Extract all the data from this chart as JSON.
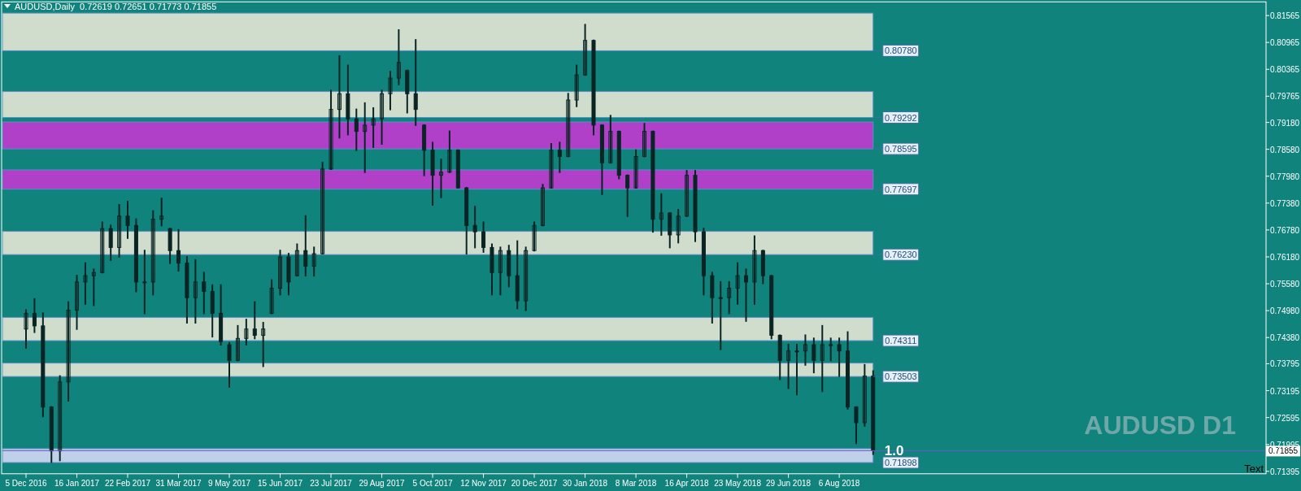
{
  "chart_data": {
    "type": "candlestick",
    "title": "AUDUSD,Daily  0.72619 0.72651 0.71773 0.71855",
    "categories": [
      "5 Dec 2016",
      null,
      null,
      null,
      null,
      null,
      "16 Jan 2017",
      null,
      null,
      null,
      null,
      null,
      "22 Feb 2017",
      null,
      null,
      null,
      null,
      null,
      "31 Mar 2017",
      null,
      null,
      null,
      null,
      null,
      "9 May 2017",
      null,
      null,
      null,
      null,
      null,
      "15 Jun 2017",
      null,
      null,
      null,
      null,
      null,
      "23 Jul 2017",
      null,
      null,
      null,
      null,
      null,
      "29 Aug 2017",
      null,
      null,
      null,
      null,
      null,
      "5 Oct 2017",
      null,
      null,
      null,
      null,
      null,
      "12 Nov 2017",
      null,
      null,
      null,
      null,
      null,
      "20 Dec 2017",
      null,
      null,
      null,
      null,
      null,
      "30 Jan 2018",
      null,
      null,
      null,
      null,
      null,
      "8 Mar 2018",
      null,
      null,
      null,
      null,
      null,
      "16 Apr 2018",
      null,
      null,
      null,
      null,
      null,
      "23 May 2018",
      null,
      null,
      null,
      null,
      null,
      "29 Jun 2018",
      null,
      null,
      null,
      null,
      null,
      "6 Aug 2018",
      null,
      null,
      null,
      null,
      null,
      null,
      null,
      null,
      null,
      null,
      null,
      null,
      null,
      null,
      null,
      null,
      null,
      null,
      null,
      null,
      null,
      null,
      null,
      null,
      null,
      null,
      null,
      null,
      null,
      null,
      null,
      null,
      null,
      null,
      null,
      null,
      null,
      null,
      null,
      null,
      null,
      null,
      null,
      null,
      null,
      null,
      null,
      null,
      null,
      null
    ],
    "series": [
      {
        "color": "#0a2424",
        "ohlc": [
          [
            0.7457,
            0.7499,
            0.7415,
            0.7492
          ],
          [
            0.7492,
            0.7524,
            0.745,
            0.7464
          ],
          [
            0.7464,
            0.7492,
            0.7262,
            0.7283
          ],
          [
            0.7283,
            0.7283,
            0.716,
            0.7185
          ],
          [
            0.7185,
            0.7352,
            0.7164,
            0.7339
          ],
          [
            0.7339,
            0.7517,
            0.7297,
            0.7499
          ],
          [
            0.7499,
            0.7576,
            0.7457,
            0.7562
          ],
          [
            0.7562,
            0.7604,
            0.7513,
            0.7576
          ],
          [
            0.7576,
            0.759,
            0.751,
            0.7583
          ],
          [
            0.7583,
            0.7695,
            0.7583,
            0.7681
          ],
          [
            0.7681,
            0.7688,
            0.7611,
            0.7639
          ],
          [
            0.7639,
            0.7734,
            0.7618,
            0.7709
          ],
          [
            0.7709,
            0.7741,
            0.766,
            0.7688
          ],
          [
            0.7688,
            0.7702,
            0.7541,
            0.7562
          ],
          [
            0.7562,
            0.7632,
            0.7492,
            0.7562
          ],
          [
            0.7562,
            0.772,
            0.7534,
            0.7702
          ],
          [
            0.7702,
            0.7748,
            0.7688,
            0.7709
          ],
          [
            0.7681,
            0.7681,
            0.7604,
            0.7632
          ],
          [
            0.7632,
            0.7678,
            0.7587,
            0.7604
          ],
          [
            0.7604,
            0.7618,
            0.7471,
            0.7527
          ],
          [
            0.7527,
            0.7611,
            0.7471,
            0.7562
          ],
          [
            0.7562,
            0.7583,
            0.7492,
            0.7541
          ],
          [
            0.7541,
            0.7555,
            0.744,
            0.7492
          ],
          [
            0.7492,
            0.7555,
            0.7422,
            0.7429
          ],
          [
            0.7422,
            0.7426,
            0.7328,
            0.7387
          ],
          [
            0.7387,
            0.7464,
            0.7387,
            0.7436
          ],
          [
            0.7436,
            0.7478,
            0.7422,
            0.7457
          ],
          [
            0.7457,
            0.7517,
            0.7436,
            0.7443
          ],
          [
            0.7443,
            0.7471,
            0.7374,
            0.7457
          ],
          [
            0.7492,
            0.7566,
            0.7492,
            0.7548
          ],
          [
            0.7548,
            0.7632,
            0.7534,
            0.7618
          ],
          [
            0.7618,
            0.7625,
            0.7534,
            0.7562
          ],
          [
            0.7576,
            0.7646,
            0.7576,
            0.7632
          ],
          [
            0.7632,
            0.7709,
            0.7576,
            0.7597
          ],
          [
            0.7597,
            0.7639,
            0.7576,
            0.7625
          ],
          [
            0.7625,
            0.7828,
            0.7625,
            0.7814
          ],
          [
            0.7814,
            0.7989,
            0.7814,
            0.7947
          ],
          [
            0.7947,
            0.8066,
            0.7884,
            0.7982
          ],
          [
            0.7982,
            0.8045,
            0.7891,
            0.7926
          ],
          [
            0.7926,
            0.7947,
            0.7856,
            0.7898
          ],
          [
            0.7898,
            0.7961,
            0.7807,
            0.7912
          ],
          [
            0.7912,
            0.795,
            0.7863,
            0.7926
          ],
          [
            0.7926,
            0.7989,
            0.787,
            0.7982
          ],
          [
            0.7982,
            0.8031,
            0.7947,
            0.8017
          ],
          [
            0.8017,
            0.8124,
            0.8003,
            0.8052
          ],
          [
            0.8034,
            0.8034,
            0.794,
            0.7982
          ],
          [
            0.7982,
            0.8102,
            0.7912,
            0.7947
          ],
          [
            0.7912,
            0.7912,
            0.78,
            0.7856
          ],
          [
            0.7856,
            0.7873,
            0.7734,
            0.78
          ],
          [
            0.78,
            0.7835,
            0.7751,
            0.7807
          ],
          [
            0.7807,
            0.7898,
            0.7807,
            0.7856
          ],
          [
            0.7856,
            0.7856,
            0.7772,
            0.7772
          ],
          [
            0.7772,
            0.7772,
            0.7625,
            0.7688
          ],
          [
            0.7688,
            0.773,
            0.7639,
            0.7674
          ],
          [
            0.7674,
            0.7695,
            0.7629,
            0.7639
          ],
          [
            0.7639,
            0.7646,
            0.7534,
            0.7583
          ],
          [
            0.7583,
            0.7639,
            0.7534,
            0.7632
          ],
          [
            0.7632,
            0.7643,
            0.7552,
            0.7576
          ],
          [
            0.7576,
            0.7653,
            0.7503,
            0.752
          ],
          [
            0.752,
            0.7639,
            0.7499,
            0.7632
          ],
          [
            0.7632,
            0.7695,
            0.7632,
            0.7688
          ],
          [
            0.7688,
            0.7779,
            0.7688,
            0.7772
          ],
          [
            0.7772,
            0.787,
            0.7772,
            0.7856
          ],
          [
            0.7856,
            0.7873,
            0.7807,
            0.7842
          ],
          [
            0.7842,
            0.7982,
            0.7842,
            0.7968
          ],
          [
            0.7968,
            0.8045,
            0.7954,
            0.8024
          ],
          [
            0.8024,
            0.8136,
            0.8024,
            0.8101
          ],
          [
            0.8101,
            0.8101,
            0.7891,
            0.7912
          ],
          [
            0.7912,
            0.7912,
            0.7758,
            0.7828
          ],
          [
            0.7828,
            0.7933,
            0.7828,
            0.7898
          ],
          [
            0.7898,
            0.7898,
            0.7793,
            0.78
          ],
          [
            0.78,
            0.78,
            0.7709,
            0.7772
          ],
          [
            0.7772,
            0.7856,
            0.7772,
            0.7842
          ],
          [
            0.7842,
            0.7915,
            0.7842,
            0.7898
          ],
          [
            0.7898,
            0.7898,
            0.7674,
            0.7702
          ],
          [
            0.7702,
            0.7758,
            0.7667,
            0.7716
          ],
          [
            0.7716,
            0.7716,
            0.7639,
            0.7667
          ],
          [
            0.7667,
            0.7723,
            0.765,
            0.7709
          ],
          [
            0.7709,
            0.781,
            0.7709,
            0.78
          ],
          [
            0.78,
            0.781,
            0.7653,
            0.7674
          ],
          [
            0.7674,
            0.7681,
            0.7534,
            0.7576
          ],
          [
            0.7576,
            0.7583,
            0.7471,
            0.7527
          ],
          [
            0.7527,
            0.7562,
            0.7412,
            0.7527
          ],
          [
            0.7527,
            0.7562,
            0.7492,
            0.7548
          ],
          [
            0.7548,
            0.7604,
            0.7513,
            0.7576
          ],
          [
            0.7576,
            0.759,
            0.7475,
            0.7562
          ],
          [
            0.7562,
            0.7664,
            0.7513,
            0.7632
          ],
          [
            0.7632,
            0.7632,
            0.7559,
            0.7576
          ],
          [
            0.7576,
            0.7576,
            0.7436,
            0.7443
          ],
          [
            0.7443,
            0.7443,
            0.7345,
            0.7387
          ],
          [
            0.7387,
            0.7422,
            0.7325,
            0.7408
          ],
          [
            0.7408,
            0.7422,
            0.7311,
            0.7408
          ],
          [
            0.7408,
            0.7443,
            0.7377,
            0.7422
          ],
          [
            0.7422,
            0.7436,
            0.736,
            0.7387
          ],
          [
            0.7387,
            0.7464,
            0.7318,
            0.7422
          ],
          [
            0.7422,
            0.7436,
            0.7387,
            0.7422
          ],
          [
            0.7422,
            0.7436,
            0.7352,
            0.7408
          ],
          [
            0.7408,
            0.745,
            0.7279,
            0.7283
          ],
          [
            0.7283,
            0.7283,
            0.7202,
            0.7248
          ],
          [
            0.7248,
            0.7377,
            0.7241,
            0.7352
          ],
          [
            0.7352,
            0.7363,
            0.7178,
            0.7186
          ],
          null,
          null,
          null,
          null,
          null,
          null,
          null,
          null,
          null,
          null,
          null,
          null,
          null,
          null,
          null,
          null,
          null,
          null,
          null,
          null,
          null,
          null,
          null,
          null,
          null,
          null,
          null,
          null,
          null,
          null,
          null,
          null,
          null,
          null,
          null,
          null,
          null,
          null,
          null,
          null,
          null,
          null,
          null,
          null,
          null,
          null
        ]
      }
    ],
    "ylim": [
      0.7134,
      0.8187
    ],
    "yticks": [
      0.81565,
      0.80965,
      0.80365,
      0.79765,
      {
        "value": 0.7918,
        "label": "0.79180"
      },
      {
        "value": 0.7858,
        "label": "0.78580"
      },
      {
        "value": 0.7798,
        "label": "0.77980"
      },
      {
        "value": 0.7738,
        "label": "0.77380"
      },
      {
        "value": 0.7678,
        "label": "0.76780"
      },
      {
        "value": 0.7618,
        "label": "0.76180"
      },
      {
        "value": 0.7558,
        "label": "0.75580"
      },
      {
        "value": 0.7498,
        "label": "0.74980"
      },
      {
        "value": 0.7438,
        "label": "0.74380"
      },
      0.73795,
      0.73195,
      0.72595,
      0.71995,
      0.71395
    ],
    "bands": [
      {
        "axis": "y",
        "from": 0.7919,
        "to": 0.7859,
        "label": "0.78595",
        "color": "#b040c8"
      },
      {
        "axis": "y",
        "from": 0.7812,
        "to": 0.7769,
        "label": "0.77697",
        "color": "#b040c8"
      },
      {
        "axis": "y",
        "from": 0.8162,
        "to": 0.8078,
        "label": "0.80780",
        "color": "#d0dccc"
      },
      {
        "axis": "y",
        "from": 0.7987,
        "to": 0.7929,
        "label": "0.79292",
        "color": "#d0dccc"
      },
      {
        "axis": "y",
        "from": 0.7675,
        "to": 0.7623,
        "label": "0.76230",
        "color": "#d0dccc"
      },
      {
        "axis": "y",
        "from": 0.7483,
        "to": 0.7431,
        "label": "0.74311",
        "color": "#d0dccc"
      },
      {
        "axis": "y",
        "from": 0.7381,
        "to": 0.7351,
        "label": "0.73503",
        "color": "#d0dccc"
      },
      {
        "axis": "y",
        "from": 0.719,
        "to": 0.7159,
        "label": "0.71898",
        "color": "#c0d0e8"
      }
    ],
    "ref_lines": [
      {
        "axis": "y",
        "value": 0.71855,
        "label": "0.71855",
        "color": "#6a5acd"
      }
    ],
    "annotations": [
      "AUDUSD D1",
      "1.0",
      "Text"
    ],
    "grid": false
  }
}
